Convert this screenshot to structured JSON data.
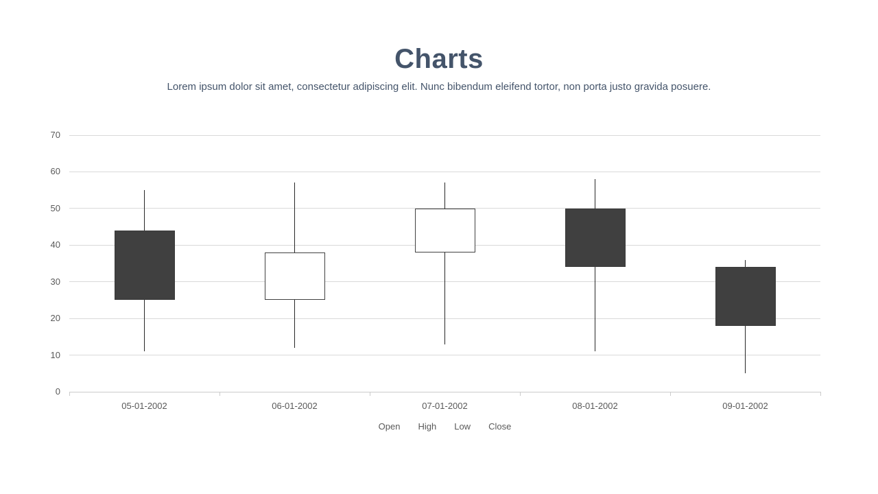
{
  "page": {
    "title": "Charts",
    "subtitle": "Lorem ipsum dolor sit amet, consectetur adipiscing elit. Nunc bibendum eleifend tortor, non porta justo gravida posuere."
  },
  "chart_data": {
    "type": "candlestick",
    "title": "Charts",
    "categories": [
      "05-01-2002",
      "06-01-2002",
      "07-01-2002",
      "08-01-2002",
      "09-01-2002"
    ],
    "series": [
      {
        "name": "Open",
        "values": [
          44,
          25,
          38,
          50,
          34
        ]
      },
      {
        "name": "High",
        "values": [
          55,
          57,
          57,
          58,
          36
        ]
      },
      {
        "name": "Low",
        "values": [
          11,
          12,
          13,
          11,
          5
        ]
      },
      {
        "name": "Close",
        "values": [
          25,
          38,
          50,
          34,
          18
        ]
      }
    ],
    "legend": [
      "Open",
      "High",
      "Low",
      "Close"
    ],
    "legend_position": "bottom",
    "xlabel": "",
    "ylabel": "",
    "ylim": [
      0,
      70
    ],
    "yticks": [
      0,
      10,
      20,
      30,
      40,
      50,
      60,
      70
    ],
    "grid": true,
    "colors": {
      "up_fill": "#ffffff",
      "up_border": "#404040",
      "down_fill": "#404040",
      "down_border": "#393939",
      "wick": "#262626",
      "gridline": "#d9d9d9",
      "axis_line": "#cbcbcb",
      "axis_label": "#595959",
      "title": "#44546a"
    }
  }
}
